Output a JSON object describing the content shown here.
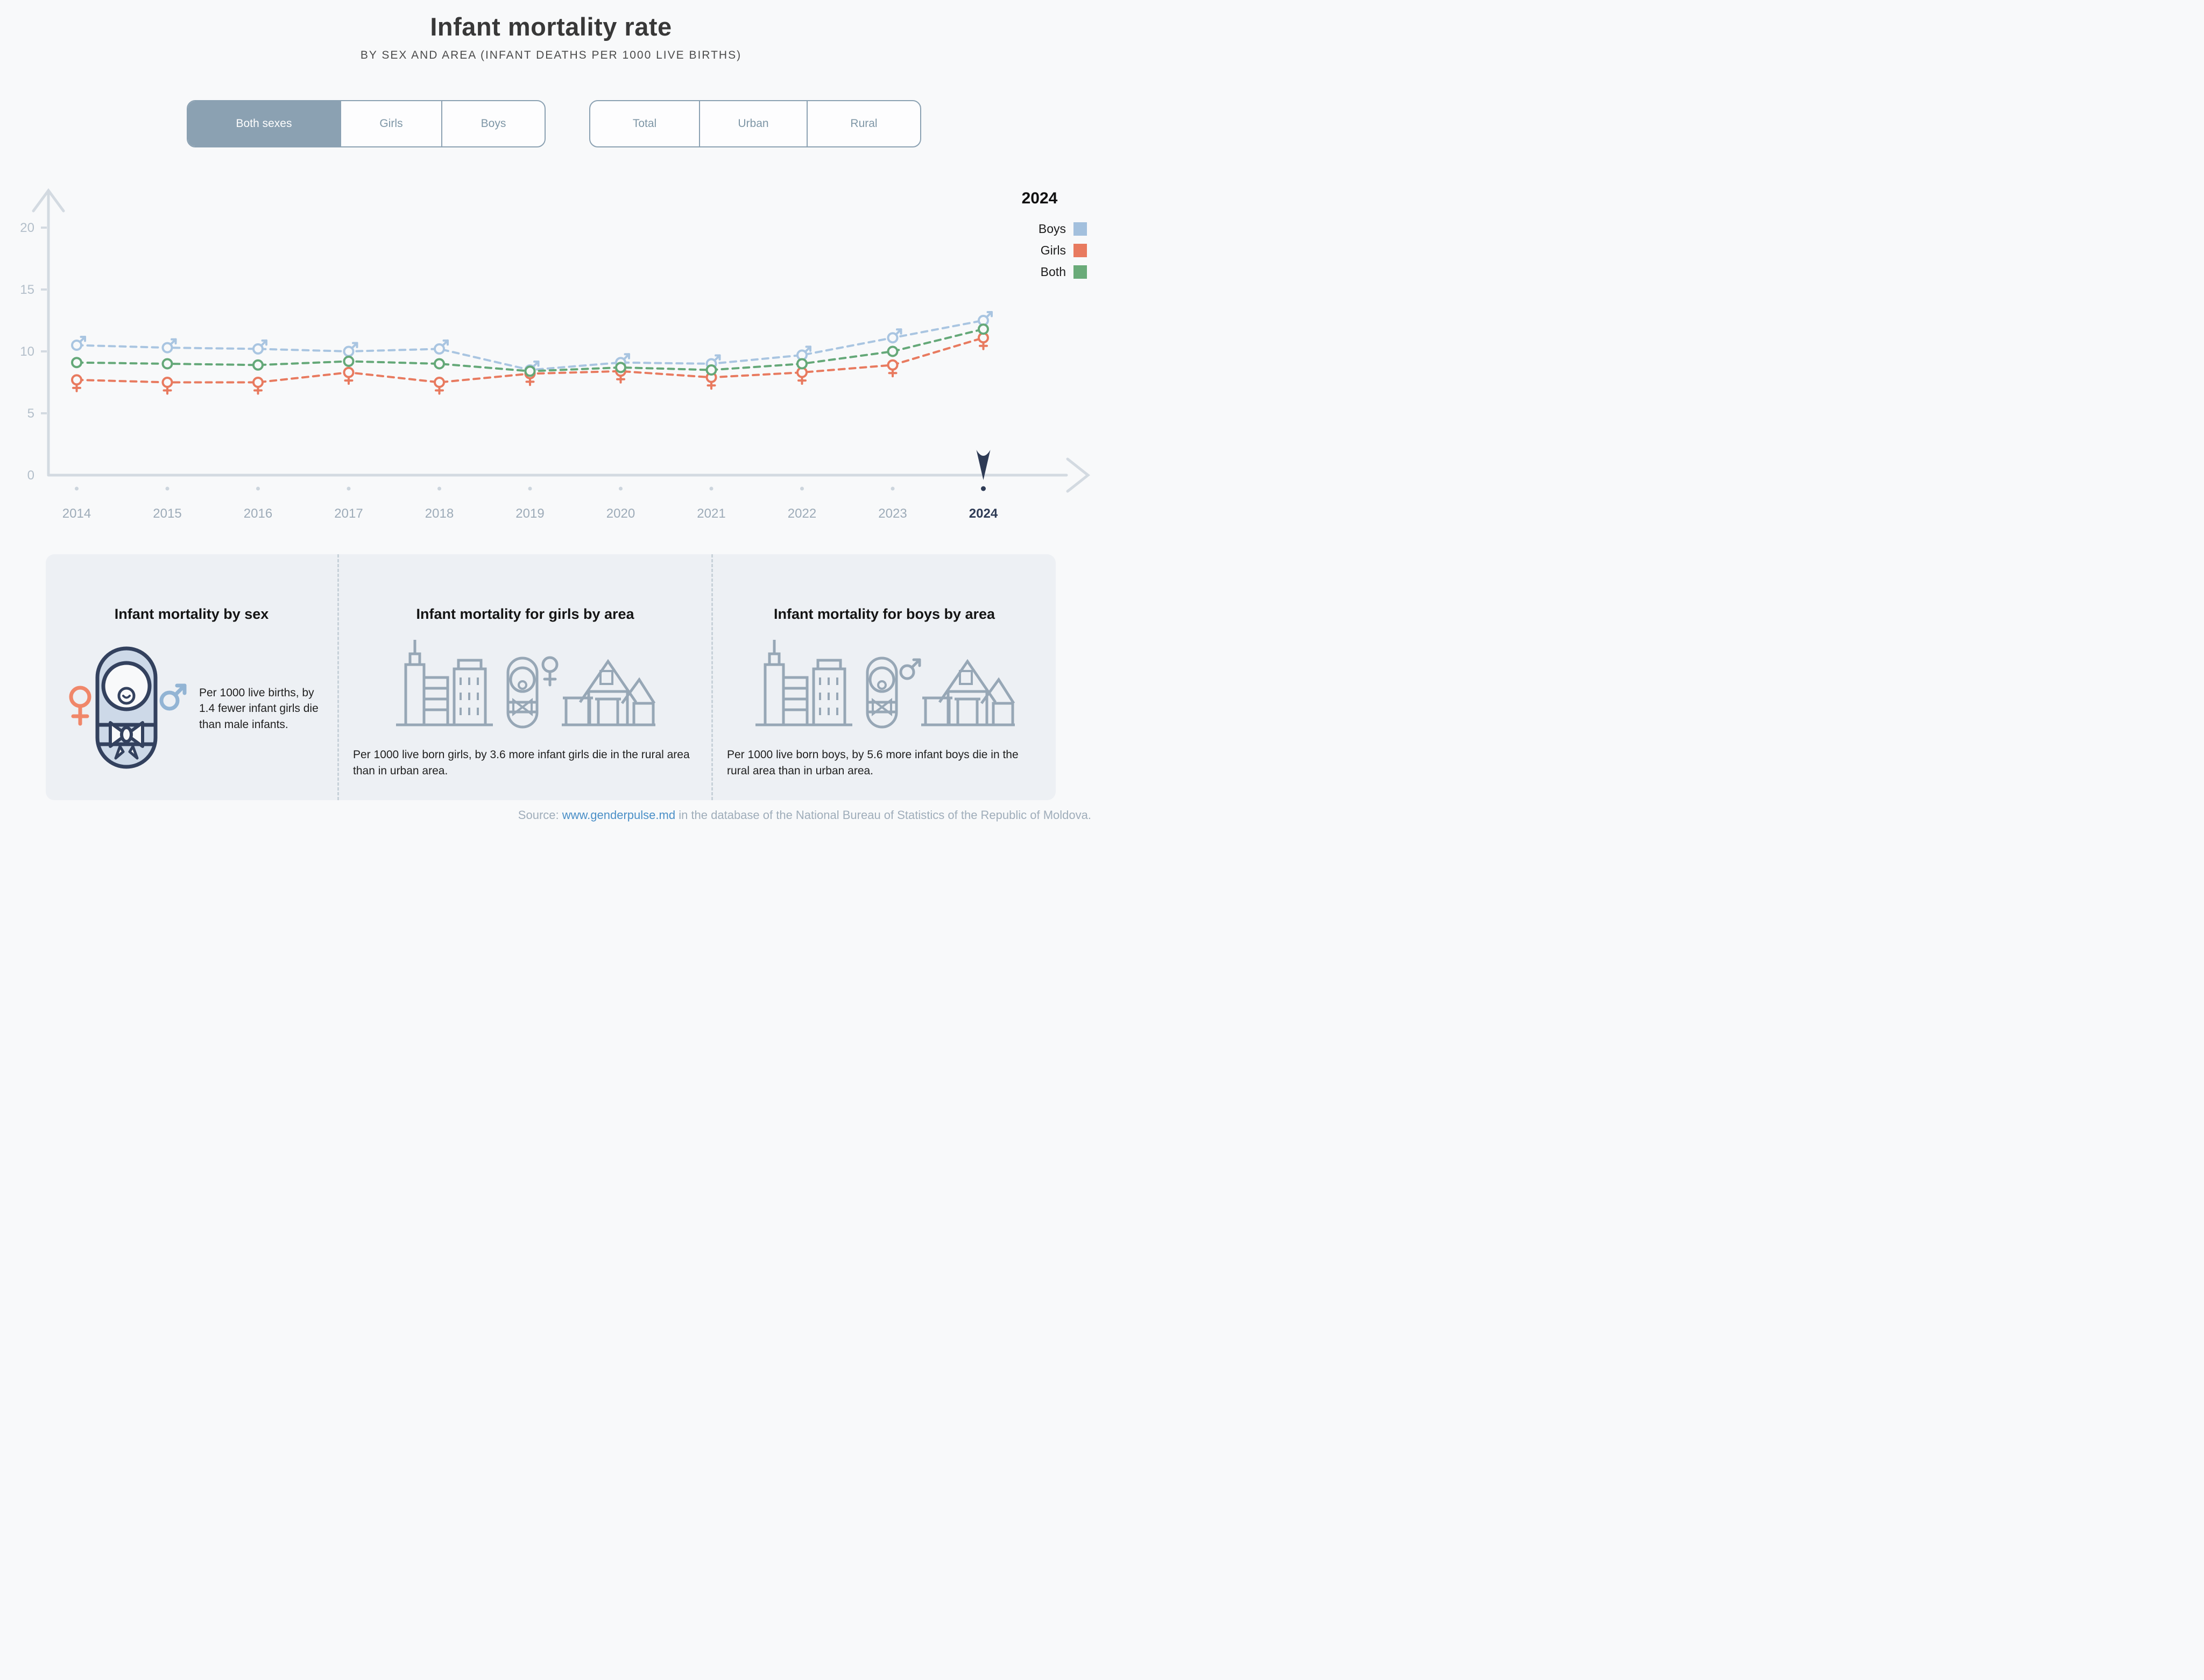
{
  "header": {
    "title": "Infant mortality rate",
    "subtitle": "BY SEX AND AREA (INFANT DEATHS PER 1000 LIVE BIRTHS)"
  },
  "toolbar": {
    "sex_tabs": [
      {
        "label": "Both sexes",
        "active": true
      },
      {
        "label": "Girls",
        "active": false
      },
      {
        "label": "Boys",
        "active": false
      }
    ],
    "area_tabs": [
      {
        "label": "Total",
        "active": false
      },
      {
        "label": "Urban",
        "active": false
      },
      {
        "label": "Rural",
        "active": false
      }
    ]
  },
  "legend": {
    "year": "2024",
    "items": [
      {
        "label": "Boys",
        "color": "#a3c0dd"
      },
      {
        "label": "Girls",
        "color": "#e87a5f"
      },
      {
        "label": "Both",
        "color": "#6aab79"
      }
    ]
  },
  "chart_data": {
    "type": "line",
    "title": "Infant mortality rate by sex, total area",
    "x": [
      2014,
      2015,
      2016,
      2017,
      2018,
      2019,
      2020,
      2021,
      2022,
      2023,
      2024
    ],
    "series": [
      {
        "name": "Boys",
        "marker": "male",
        "color": "#a9c5e1",
        "values": [
          10.5,
          10.3,
          10.2,
          10.0,
          10.2,
          8.5,
          9.1,
          9.0,
          9.7,
          11.1,
          12.5
        ]
      },
      {
        "name": "Girls",
        "marker": "female",
        "color": "#e87a5f",
        "values": [
          7.7,
          7.5,
          7.5,
          8.3,
          7.5,
          8.2,
          8.4,
          7.9,
          8.3,
          8.9,
          11.1
        ]
      },
      {
        "name": "Both",
        "marker": "circle",
        "color": "#64a878",
        "values": [
          9.1,
          9.0,
          8.9,
          9.2,
          9.0,
          8.4,
          8.7,
          8.5,
          9.0,
          10.0,
          11.8
        ]
      }
    ],
    "ylim": [
      0,
      22
    ],
    "yticks": [
      0,
      5,
      10,
      15,
      20
    ],
    "highlight_year": 2024,
    "line_style": "dashed",
    "grid": false,
    "legend_position": "top-right"
  },
  "cards": [
    {
      "title": "Infant mortality by sex",
      "text": "Per 1000 live births, by 1.4 fewer infant girls die than male infants."
    },
    {
      "title": "Infant mortality for girls by area",
      "text": "Per 1000 live born girls, by 3.6 more infant girls die in the rural area than in urban area."
    },
    {
      "title": "Infant mortality for boys by area",
      "text": "Per 1000 live born boys, by 5.6 more infant boys die in the rural area than in urban area."
    }
  ],
  "source": {
    "prefix": "Source: ",
    "link": "www.genderpulse.md",
    "suffix": " in the database of the National Bureau of Statistics of the Republic of Moldova."
  },
  "colors": {
    "accent_navy": "#2e3b55",
    "axis": "#d3dae1",
    "tick_text": "#b3bfca",
    "year_text": "#9dabb8",
    "button": "#8ba1b2",
    "icon_line": "#97a7b6",
    "baby_fill": "#cdd9e8",
    "female_icon": "#f0876a",
    "male_icon": "#92b4d4"
  }
}
